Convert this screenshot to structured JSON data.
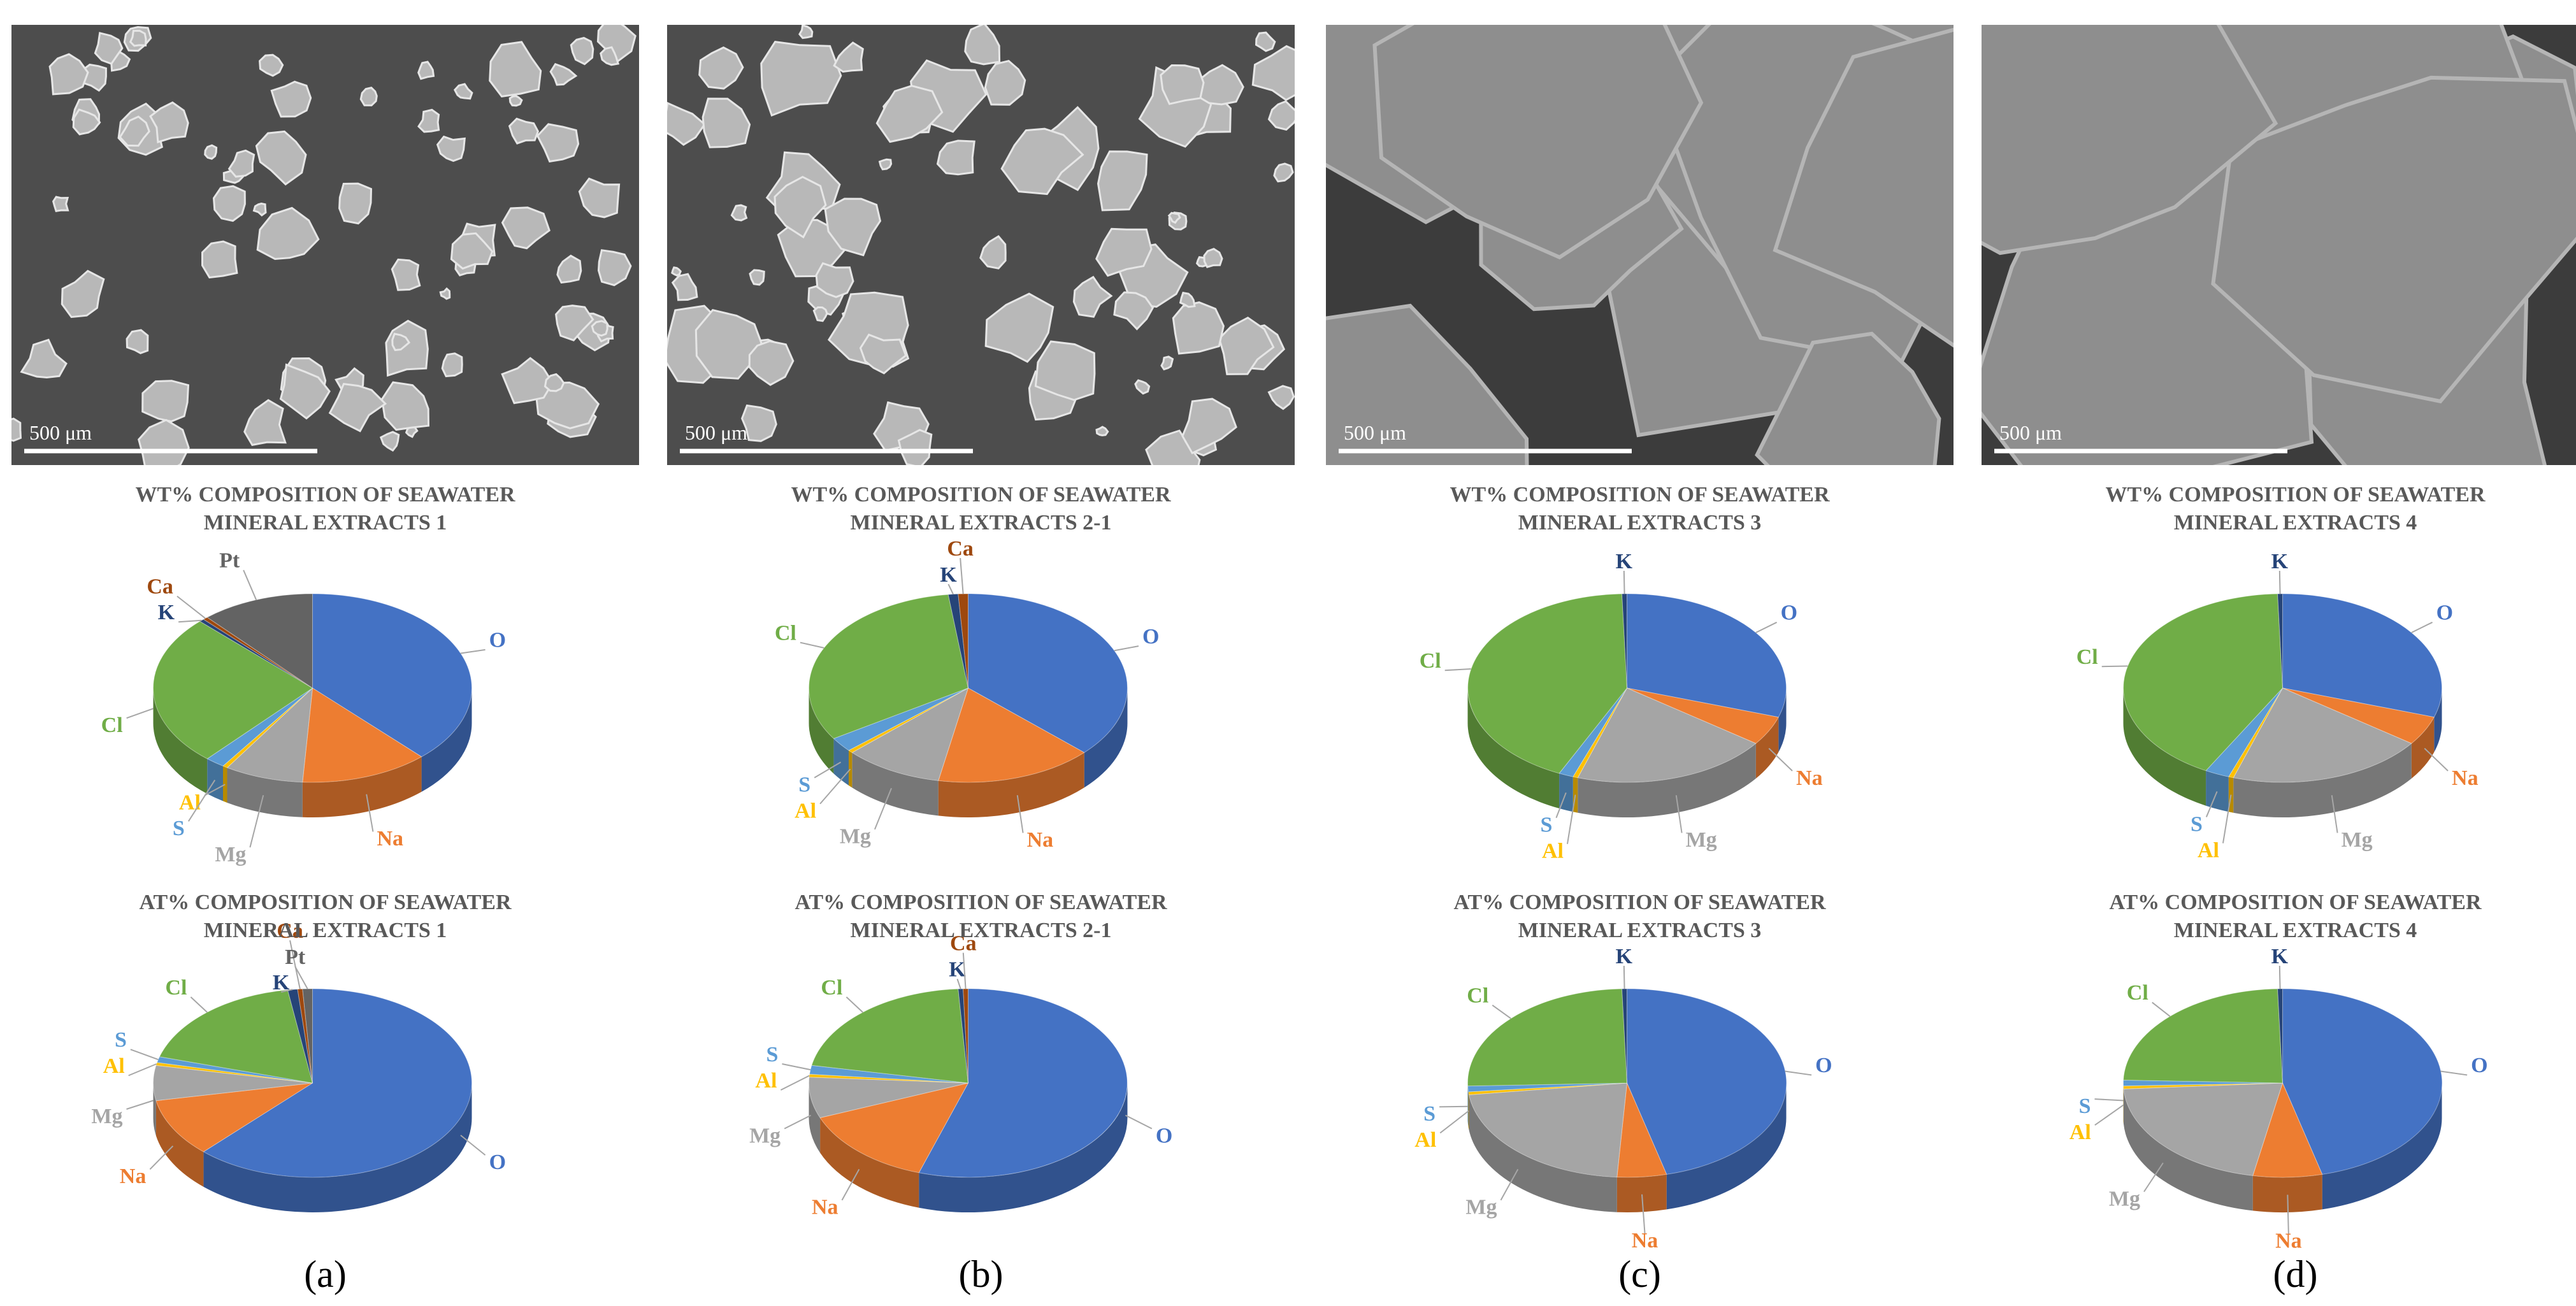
{
  "chart_data": [
    {
      "type": "pie",
      "title": "WT% COMPOSITION OF SEAWATER MINERAL EXTRACTS 1",
      "categories": [
        "O",
        "Na",
        "Mg",
        "Al",
        "S",
        "Cl",
        "K",
        "Ca",
        "Pt"
      ],
      "values": [
        38,
        13,
        8,
        0.5,
        2,
        26,
        0.5,
        0.5,
        11.5
      ],
      "colors": [
        "#4472c4",
        "#ed7d31",
        "#a5a5a5",
        "#ffc000",
        "#5b9bd5",
        "#70ad47",
        "#264478",
        "#9e480e",
        "#636363"
      ]
    },
    {
      "type": "pie",
      "title": "AT% COMPOSITION OF SEAWATER MINERAL EXTRACTS 1",
      "categories": [
        "O",
        "Na",
        "Mg",
        "Al",
        "S",
        "Cl",
        "K",
        "Ca",
        "Pt"
      ],
      "values": [
        62,
        10,
        6,
        0.5,
        1,
        18,
        1,
        0.5,
        1
      ],
      "colors": [
        "#4472c4",
        "#ed7d31",
        "#a5a5a5",
        "#ffc000",
        "#5b9bd5",
        "#70ad47",
        "#264478",
        "#9e480e",
        "#636363"
      ]
    },
    {
      "type": "pie",
      "title": "WT% COMPOSITION OF SEAWATER MINERAL EXTRACTS 2-1",
      "categories": [
        "O",
        "Na",
        "Mg",
        "Al",
        "S",
        "Cl",
        "K",
        "Ca"
      ],
      "values": [
        37,
        16,
        10,
        0.5,
        2.5,
        32,
        1,
        1
      ],
      "colors": [
        "#4472c4",
        "#ed7d31",
        "#a5a5a5",
        "#ffc000",
        "#5b9bd5",
        "#70ad47",
        "#264478",
        "#9e480e"
      ]
    },
    {
      "type": "pie",
      "title": "AT% COMPOSITION OF SEAWATER MINERAL EXTRACTS 2-1",
      "categories": [
        "O",
        "Na",
        "Mg",
        "Al",
        "S",
        "Cl",
        "K",
        "Ca"
      ],
      "values": [
        55,
        14,
        7,
        0.5,
        1.5,
        21,
        0.5,
        0.5
      ],
      "colors": [
        "#4472c4",
        "#ed7d31",
        "#a5a5a5",
        "#ffc000",
        "#5b9bd5",
        "#70ad47",
        "#264478",
        "#9e480e"
      ]
    },
    {
      "type": "pie",
      "title": "WT% COMPOSITION OF SEAWATER MINERAL EXTRACTS 3",
      "categories": [
        "O",
        "Na",
        "Mg",
        "Al",
        "S",
        "Cl",
        "K"
      ],
      "values": [
        30,
        5,
        20,
        0.5,
        1.5,
        42.5,
        0.5
      ],
      "colors": [
        "#4472c4",
        "#ed7d31",
        "#a5a5a5",
        "#ffc000",
        "#5b9bd5",
        "#70ad47",
        "#264478"
      ]
    },
    {
      "type": "pie",
      "title": "AT% COMPOSITION OF SEAWATER MINERAL EXTRACTS 3",
      "categories": [
        "O",
        "Na",
        "Mg",
        "Al",
        "S",
        "Cl",
        "K"
      ],
      "values": [
        46,
        5,
        22,
        0.5,
        1,
        25,
        0.5
      ],
      "colors": [
        "#4472c4",
        "#ed7d31",
        "#a5a5a5",
        "#ffc000",
        "#5b9bd5",
        "#70ad47",
        "#264478"
      ]
    },
    {
      "type": "pie",
      "title": "WT% COMPOSITION OF SEAWATER MINERAL EXTRACTS 4",
      "categories": [
        "O",
        "Na",
        "Mg",
        "Al",
        "S",
        "Cl",
        "K"
      ],
      "values": [
        30,
        5,
        20,
        0.5,
        2.5,
        41.5,
        0.5
      ],
      "colors": [
        "#4472c4",
        "#ed7d31",
        "#a5a5a5",
        "#ffc000",
        "#5b9bd5",
        "#70ad47",
        "#264478"
      ]
    },
    {
      "type": "pie",
      "title": "AT% COMPOSITION OF SEAWATER MINERAL EXTRACTS 4",
      "categories": [
        "O",
        "Na",
        "Mg",
        "Al",
        "S",
        "Cl",
        "K"
      ],
      "values": [
        46,
        7,
        21,
        0.5,
        1,
        24,
        0.5
      ],
      "colors": [
        "#4472c4",
        "#ed7d31",
        "#a5a5a5",
        "#ffc000",
        "#5b9bd5",
        "#70ad47",
        "#264478"
      ]
    }
  ],
  "panels": [
    {
      "label": "(a)",
      "scale_bar": "500 μm"
    },
    {
      "label": "(b)",
      "scale_bar": "500 μm"
    },
    {
      "label": "(c)",
      "scale_bar": "500 μm"
    },
    {
      "label": "(d)",
      "scale_bar": "500 μm"
    }
  ]
}
